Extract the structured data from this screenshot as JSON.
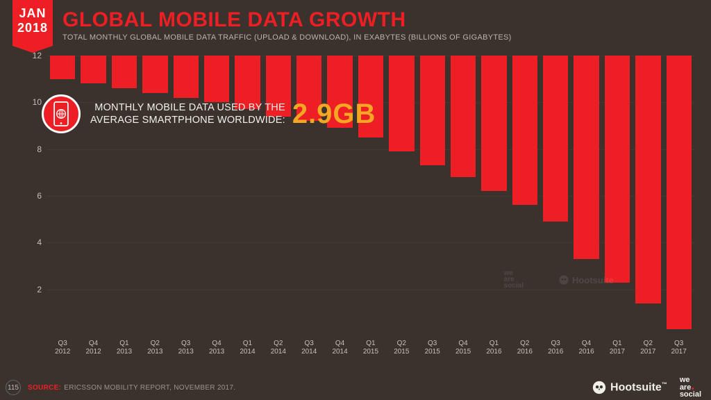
{
  "colors": {
    "background": "#3b322d",
    "accent_red": "#ed1f24",
    "text_light": "#f2efe9",
    "text_muted": "#b9b3aa",
    "highlight_orange": "#f5a623",
    "gridline": "#6b635c",
    "footer_source": "#ed1f24",
    "footer_muted": "#9a948c",
    "badge_text": "#ffffff"
  },
  "date_badge": {
    "month": "JAN",
    "year": "2018"
  },
  "title": "GLOBAL MOBILE DATA GROWTH",
  "subtitle": "TOTAL MONTHLY GLOBAL MOBILE DATA TRAFFIC (UPLOAD & DOWNLOAD), IN EXABYTES (BILLIONS OF GIGABYTES)",
  "callout": {
    "line1": "MONTHLY MOBILE DATA USED BY THE",
    "line2": "AVERAGE SMARTPHONE WORLDWIDE:",
    "value": "2.9GB"
  },
  "chart": {
    "type": "bar",
    "ylim": [
      0,
      12
    ],
    "yticks": [
      2,
      4,
      6,
      8,
      10,
      12
    ],
    "bar_color": "#ed1f24",
    "bar_width": 0.82,
    "label_color": "#c7c0b7",
    "label_fontsize": 10,
    "ylabel_fontsize": 12,
    "categories": [
      {
        "q": "Q3",
        "y": "2012"
      },
      {
        "q": "Q4",
        "y": "2012"
      },
      {
        "q": "Q1",
        "y": "2013"
      },
      {
        "q": "Q2",
        "y": "2013"
      },
      {
        "q": "Q3",
        "y": "2013"
      },
      {
        "q": "Q4",
        "y": "2013"
      },
      {
        "q": "Q1",
        "y": "2014"
      },
      {
        "q": "Q2",
        "y": "2014"
      },
      {
        "q": "Q3",
        "y": "2014"
      },
      {
        "q": "Q4",
        "y": "2014"
      },
      {
        "q": "Q1",
        "y": "2015"
      },
      {
        "q": "Q2",
        "y": "2015"
      },
      {
        "q": "Q3",
        "y": "2015"
      },
      {
        "q": "Q4",
        "y": "2015"
      },
      {
        "q": "Q1",
        "y": "2016"
      },
      {
        "q": "Q2",
        "y": "2016"
      },
      {
        "q": "Q3",
        "y": "2016"
      },
      {
        "q": "Q4",
        "y": "2016"
      },
      {
        "q": "Q1",
        "y": "2017"
      },
      {
        "q": "Q2",
        "y": "2017"
      },
      {
        "q": "Q3",
        "y": "2017"
      }
    ],
    "values": [
      1.0,
      1.2,
      1.4,
      1.6,
      1.8,
      2.0,
      2.3,
      2.6,
      2.8,
      3.1,
      3.5,
      4.1,
      4.7,
      5.2,
      5.8,
      6.4,
      7.1,
      8.7,
      9.7,
      10.6,
      11.7
    ]
  },
  "footer": {
    "page": "115",
    "source_label": "SOURCE:",
    "source_text": "ERICSSON MOBILITY REPORT, NOVEMBER 2017.",
    "hootsuite": "Hootsuite",
    "tm": "™",
    "we_are_social": {
      "l1": "we",
      "l2": "are",
      "l3": "social"
    }
  }
}
